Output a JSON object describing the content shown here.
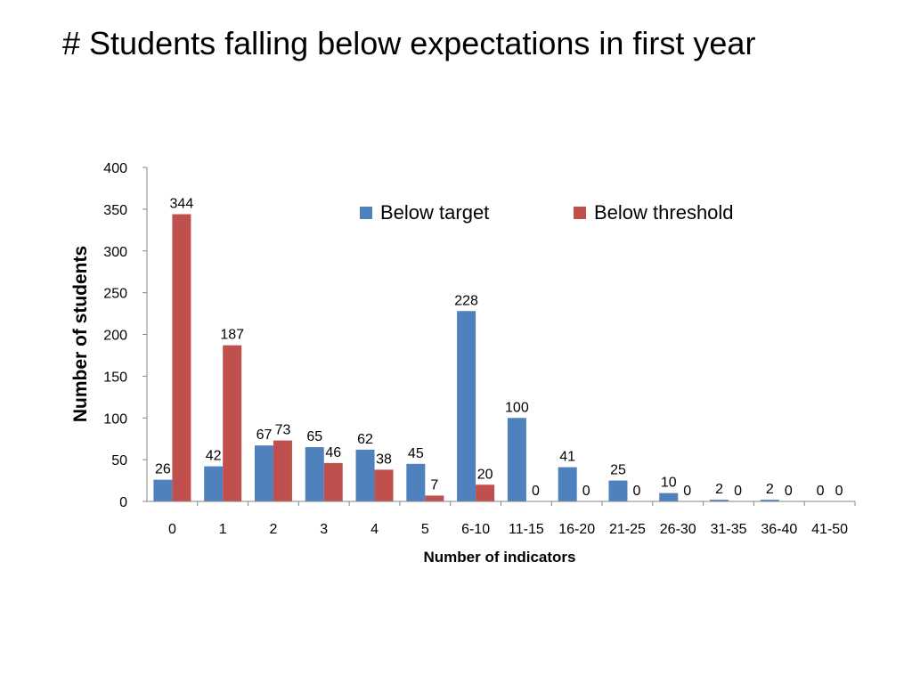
{
  "slide": {
    "title": "# Students falling below expectations in first year"
  },
  "chart_data": {
    "type": "bar",
    "title": "",
    "xlabel": "Number of indicators",
    "ylabel": "Number of students",
    "ylim": [
      0,
      400
    ],
    "yticks": [
      0,
      50,
      100,
      150,
      200,
      250,
      300,
      350,
      400
    ],
    "grid": false,
    "legend_position": "top-right",
    "categories": [
      "0",
      "1",
      "2",
      "3",
      "4",
      "5",
      "6-10",
      "11-15",
      "16-20",
      "21-25",
      "26-30",
      "31-35",
      "36-40",
      "41-50"
    ],
    "series": [
      {
        "name": "Below target",
        "color": "#4F81BD",
        "values": [
          26,
          42,
          67,
          65,
          62,
          45,
          228,
          100,
          41,
          25,
          10,
          2,
          2,
          0
        ]
      },
      {
        "name": "Below threshold",
        "color": "#C0504D",
        "values": [
          344,
          187,
          73,
          46,
          38,
          7,
          20,
          0,
          0,
          0,
          0,
          0,
          0,
          0
        ]
      }
    ]
  }
}
